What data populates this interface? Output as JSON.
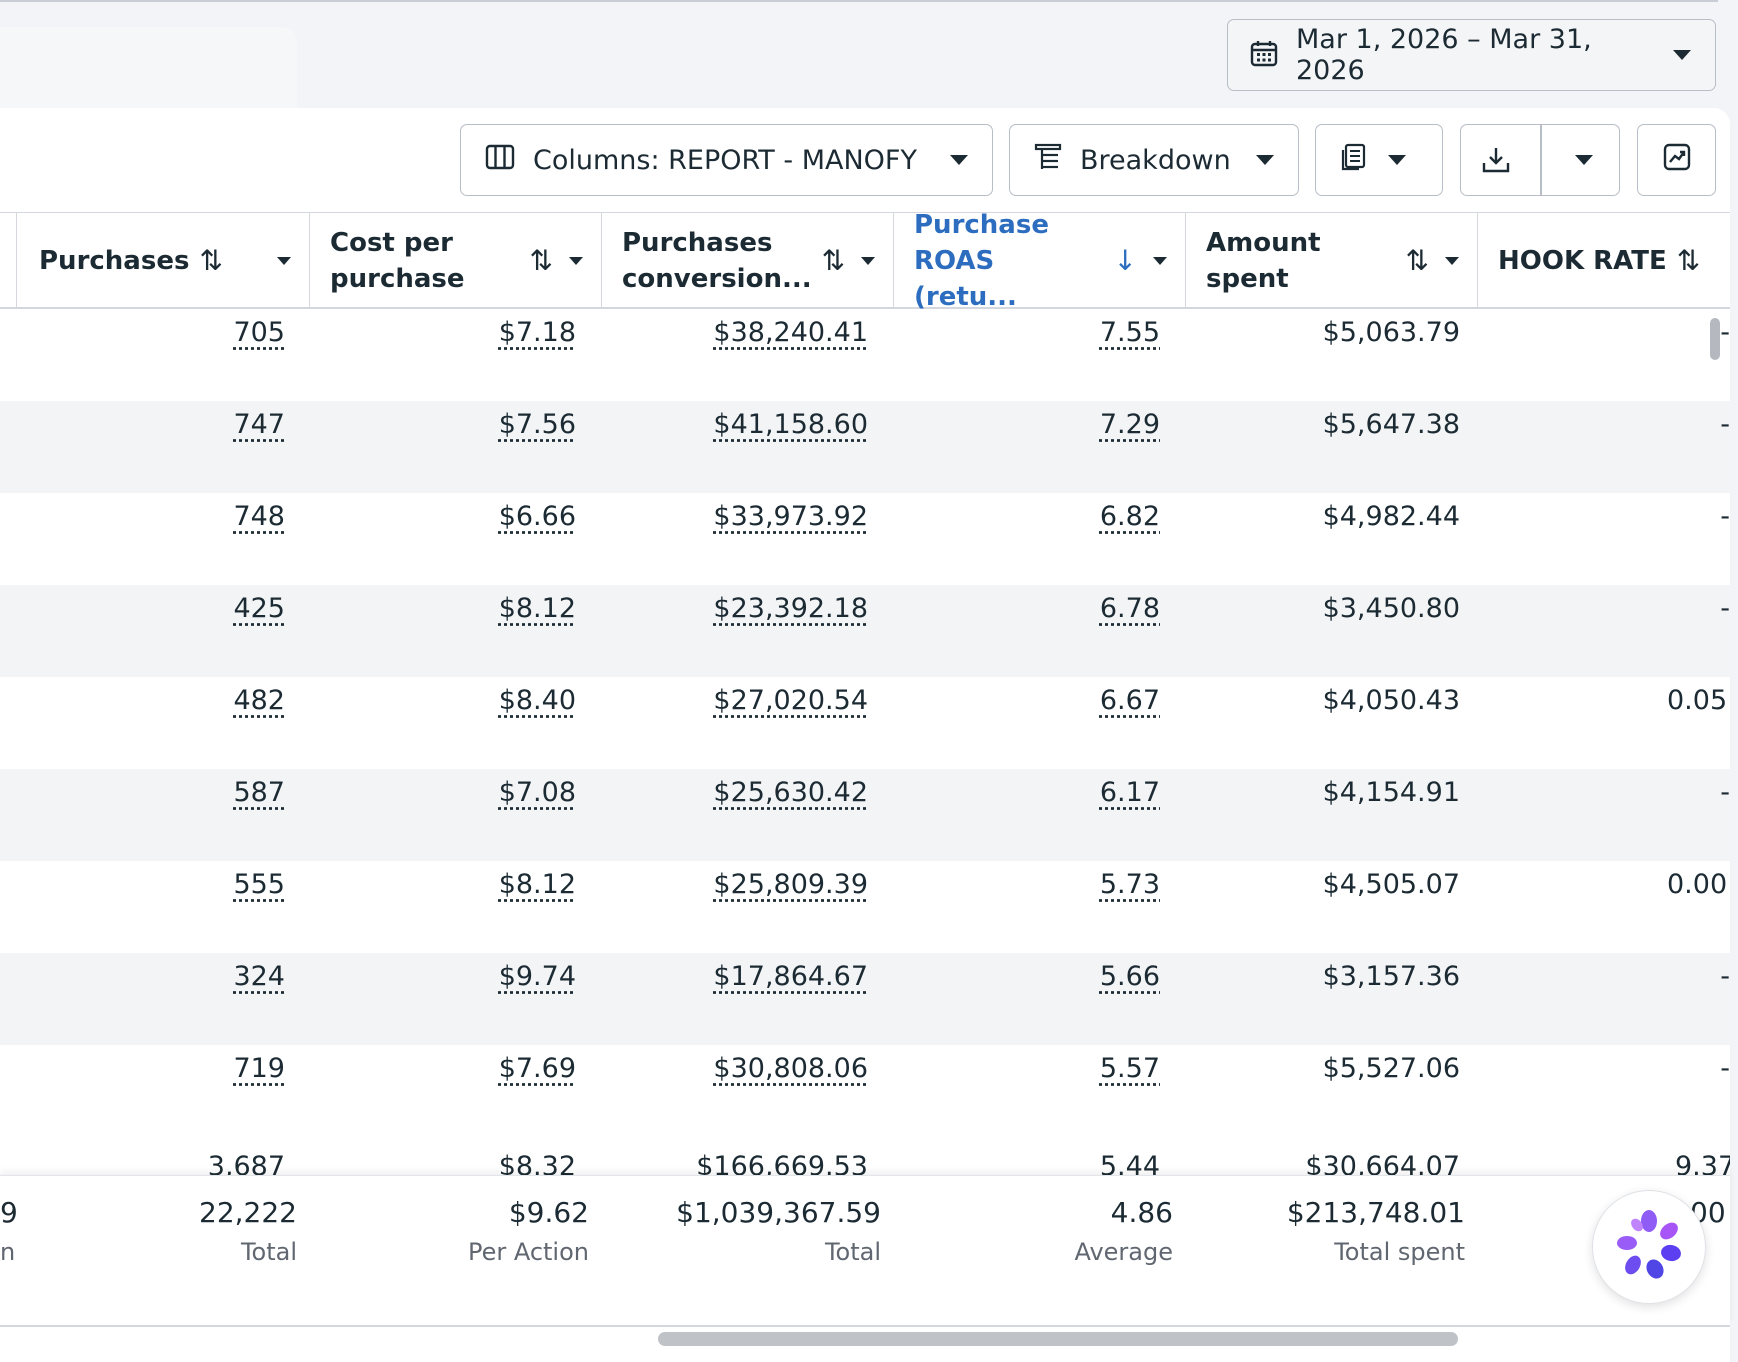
{
  "date_range": {
    "label": "Mar 1, 2026 – Mar 31, 2026",
    "icon": "calendar-icon"
  },
  "toolbar": {
    "columns_label": "Columns: REPORT - MANOFY",
    "breakdown_label": "Breakdown",
    "icons": [
      "columns-icon",
      "breakdown-icon",
      "reports-icon",
      "export-icon",
      "chart-icon"
    ]
  },
  "columns": [
    {
      "key": "purchases",
      "label": "Purchases"
    },
    {
      "key": "cost_per_purchase",
      "label_line1": "Cost per",
      "label_line2": "purchase"
    },
    {
      "key": "purchases_conversion",
      "label_line1": "Purchases",
      "label_line2": "conversion..."
    },
    {
      "key": "purchase_roas",
      "label_line1": "Purchase",
      "label_line2": "ROAS (retu..."
    },
    {
      "key": "amount_spent",
      "label_line1": "Amount",
      "label_line2": "spent"
    },
    {
      "key": "hook_rate",
      "label": "HOOK RATE"
    }
  ],
  "rows": [
    {
      "purchases": "705",
      "cpp": "$7.18",
      "conv": "$38,240.41",
      "roas": "7.55",
      "spent": "$5,063.79",
      "hook": "-"
    },
    {
      "purchases": "747",
      "cpp": "$7.56",
      "conv": "$41,158.60",
      "roas": "7.29",
      "spent": "$5,647.38",
      "hook": "-"
    },
    {
      "purchases": "748",
      "cpp": "$6.66",
      "conv": "$33,973.92",
      "roas": "6.82",
      "spent": "$4,982.44",
      "hook": "-"
    },
    {
      "purchases": "425",
      "cpp": "$8.12",
      "conv": "$23,392.18",
      "roas": "6.78",
      "spent": "$3,450.80",
      "hook": "-"
    },
    {
      "purchases": "482",
      "cpp": "$8.40",
      "conv": "$27,020.54",
      "roas": "6.67",
      "spent": "$4,050.43",
      "hook": "0.05"
    },
    {
      "purchases": "587",
      "cpp": "$7.08",
      "conv": "$25,630.42",
      "roas": "6.17",
      "spent": "$4,154.91",
      "hook": "-"
    },
    {
      "purchases": "555",
      "cpp": "$8.12",
      "conv": "$25,809.39",
      "roas": "5.73",
      "spent": "$4,505.07",
      "hook": "0.00"
    },
    {
      "purchases": "324",
      "cpp": "$9.74",
      "conv": "$17,864.67",
      "roas": "5.66",
      "spent": "$3,157.36",
      "hook": "-"
    },
    {
      "purchases": "719",
      "cpp": "$7.69",
      "conv": "$30,808.06",
      "roas": "5.57",
      "spent": "$5,527.06",
      "hook": "-"
    }
  ],
  "partial_row": {
    "purchases": "3,687",
    "cpp": "$8.32",
    "conv": "$166,669.53",
    "roas": "5.44",
    "spent": "$30,664.07",
    "hook": "9.37"
  },
  "footer": {
    "left_edge_value": "9",
    "left_edge_label": "n",
    "purchases": {
      "value": "22,222",
      "label": "Total"
    },
    "cpp": {
      "value": "$9.62",
      "label": "Per Action"
    },
    "conv": {
      "value": "$1,039,367.59",
      "label": "Total"
    },
    "roas": {
      "value": "4.86",
      "label": "Average"
    },
    "spent": {
      "value": "$213,748.01",
      "label": "Total spent"
    },
    "hook": {
      "value": "00"
    }
  },
  "assistant_icon": "assistant-logo-icon"
}
